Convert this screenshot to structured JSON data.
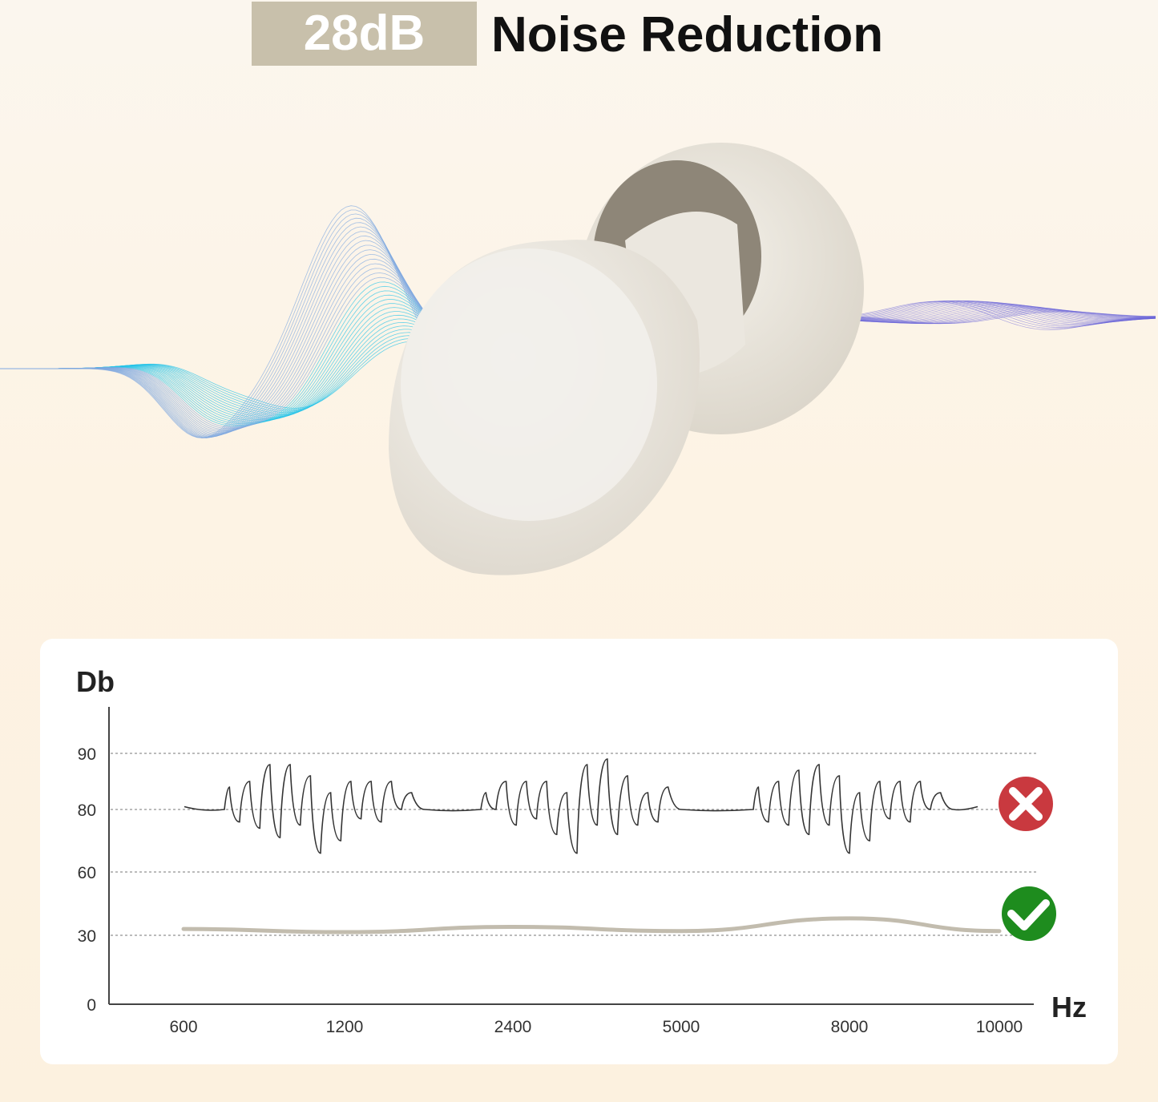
{
  "header": {
    "badge": "28dB",
    "title": "Noise Reduction"
  },
  "colors": {
    "badge_bg": "#c8c0ab",
    "bad": "#c9393f",
    "good": "#1e8c1e",
    "noise_line": "#333333",
    "reduced_line": "#c2bcae",
    "wave_cyan": "#23c3e8",
    "wave_violet": "#6a64d8"
  },
  "icons": {
    "bad": "x-circle-icon",
    "good": "check-circle-icon"
  },
  "chart_data": {
    "type": "line",
    "title": "",
    "ylabel": "Db",
    "xlabel": "Hz",
    "y_ticks": [
      "0",
      "30",
      "60",
      "80",
      "90"
    ],
    "x_ticks": [
      "600",
      "1200",
      "2400",
      "5000",
      "8000",
      "10000"
    ],
    "grid": "horizontal dashed at 30, 60, 80, 90",
    "series": [
      {
        "key": "noise",
        "status": "bad",
        "baseline": 80,
        "bursts": [
          [
            84,
            76,
            85,
            74,
            88,
            71,
            88,
            75,
            86,
            66,
            83,
            70,
            85,
            77,
            85,
            76,
            85,
            80,
            83
          ],
          [
            83,
            80,
            85,
            75,
            85,
            77,
            85,
            72,
            83,
            66,
            88,
            75,
            89,
            72,
            86,
            75,
            83,
            76,
            84
          ],
          [
            84,
            76,
            85,
            75,
            87,
            72,
            88,
            75,
            86,
            66,
            83,
            70,
            85,
            77,
            85,
            76,
            85,
            80,
            83
          ]
        ]
      },
      {
        "key": "reduced",
        "status": "good",
        "x": [
          "600",
          "1200",
          "2400",
          "5000",
          "8000",
          "10000"
        ],
        "values": [
          33,
          31.5,
          34,
          32,
          38,
          32
        ]
      }
    ]
  }
}
